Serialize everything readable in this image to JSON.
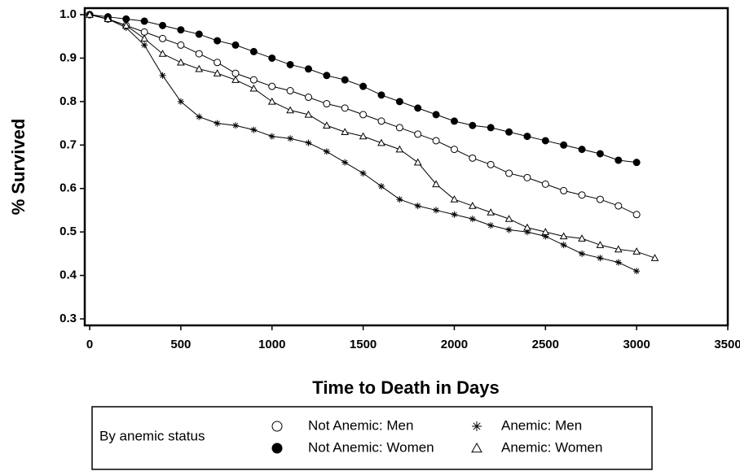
{
  "chart_data": {
    "type": "line",
    "x_label": "Time to Death in Days",
    "y_label": "% Survived",
    "legend_title": "By anemic status",
    "legend_position": "bottom",
    "x": [
      0,
      100,
      200,
      300,
      400,
      500,
      600,
      700,
      800,
      900,
      1000,
      1100,
      1200,
      1300,
      1400,
      1500,
      1600,
      1700,
      1800,
      1900,
      2000,
      2100,
      2200,
      2300,
      2400,
      2500,
      2600,
      2700,
      2800,
      2900,
      3000,
      3100
    ],
    "xlim": [
      -27,
      3500
    ],
    "xticks": [
      0,
      500,
      1000,
      1500,
      2000,
      2500,
      3000,
      3500
    ],
    "ylim": [
      0.285,
      1.015
    ],
    "yticks": [
      {
        "value": 1,
        "label": "1.0"
      },
      0.9,
      0.8,
      0.7,
      0.6,
      0.5,
      0.4,
      0.3
    ],
    "series": [
      {
        "name": "Not Anemic:  Men",
        "color": "#000000",
        "marker": "circle-open",
        "values": [
          1,
          0.99,
          0.975,
          0.96,
          0.945,
          0.93,
          0.91,
          0.89,
          0.865,
          0.85,
          0.835,
          0.825,
          0.81,
          0.795,
          0.785,
          0.77,
          0.755,
          0.74,
          0.725,
          0.71,
          0.69,
          0.67,
          0.655,
          0.635,
          0.625,
          0.61,
          0.595,
          0.585,
          0.575,
          0.56,
          0.54,
          null
        ]
      },
      {
        "name": "Not Anemic:  Women",
        "color": "#000000",
        "marker": "circle-filled",
        "values": [
          1,
          0.995,
          0.99,
          0.985,
          0.975,
          0.965,
          0.955,
          0.94,
          0.93,
          0.915,
          0.9,
          0.885,
          0.875,
          0.86,
          0.85,
          0.835,
          0.815,
          0.8,
          0.785,
          0.77,
          0.755,
          0.745,
          0.74,
          0.73,
          0.72,
          0.71,
          0.7,
          0.69,
          0.68,
          0.665,
          0.66,
          null
        ]
      },
      {
        "name": "Anemic:  Men",
        "color": "#000000",
        "marker": "star",
        "values": [
          1,
          0.99,
          0.97,
          0.93,
          0.86,
          0.8,
          0.765,
          0.75,
          0.745,
          0.735,
          0.72,
          0.715,
          0.705,
          0.685,
          0.66,
          0.635,
          0.605,
          0.575,
          0.56,
          0.55,
          0.54,
          0.53,
          0.515,
          0.505,
          0.5,
          0.49,
          0.47,
          0.45,
          0.44,
          0.43,
          0.41,
          null
        ]
      },
      {
        "name": "Anemic:  Women",
        "color": "#000000",
        "marker": "triangle-open",
        "values": [
          1,
          0.99,
          0.975,
          0.945,
          0.91,
          0.89,
          0.875,
          0.865,
          0.85,
          0.83,
          0.8,
          0.78,
          0.77,
          0.745,
          0.73,
          0.72,
          0.705,
          0.69,
          0.66,
          0.61,
          0.575,
          0.56,
          0.545,
          0.53,
          0.51,
          0.5,
          0.49,
          0.485,
          0.47,
          0.46,
          0.455,
          0.44
        ]
      }
    ]
  }
}
